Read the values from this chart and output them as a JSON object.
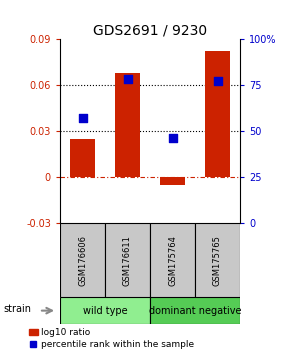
{
  "title": "GDS2691 / 9230",
  "samples": [
    "GSM176606",
    "GSM176611",
    "GSM175764",
    "GSM175765"
  ],
  "log10_values": [
    0.025,
    0.068,
    -0.005,
    0.082
  ],
  "percentile_values": [
    57,
    78,
    46,
    77
  ],
  "groups": [
    {
      "label": "wild type",
      "samples": [
        0,
        1
      ],
      "color": "#90ee90"
    },
    {
      "label": "dominant negative",
      "samples": [
        2,
        3
      ],
      "color": "#55cc55"
    }
  ],
  "ylim_left": [
    -0.03,
    0.09
  ],
  "ylim_right": [
    0,
    100
  ],
  "yticks_left": [
    -0.03,
    0,
    0.03,
    0.06,
    0.09
  ],
  "ytick_labels_left": [
    "-0.03",
    "0",
    "0.03",
    "0.06",
    "0.09"
  ],
  "yticks_right": [
    0,
    25,
    50,
    75,
    100
  ],
  "ytick_labels_right": [
    "0",
    "25",
    "50",
    "75",
    "100%"
  ],
  "hlines_dotted": [
    0.03,
    0.06
  ],
  "hline_dashdot": 0,
  "bar_color": "#cc2200",
  "dot_color": "#0000cc",
  "bar_width": 0.55,
  "dot_size": 40,
  "strain_label": "strain",
  "legend_bar_label": "log10 ratio",
  "legend_dot_label": "percentile rank within the sample",
  "background_label": "#c8c8c8",
  "group_colors": [
    "#90ee90",
    "#55cc55"
  ]
}
